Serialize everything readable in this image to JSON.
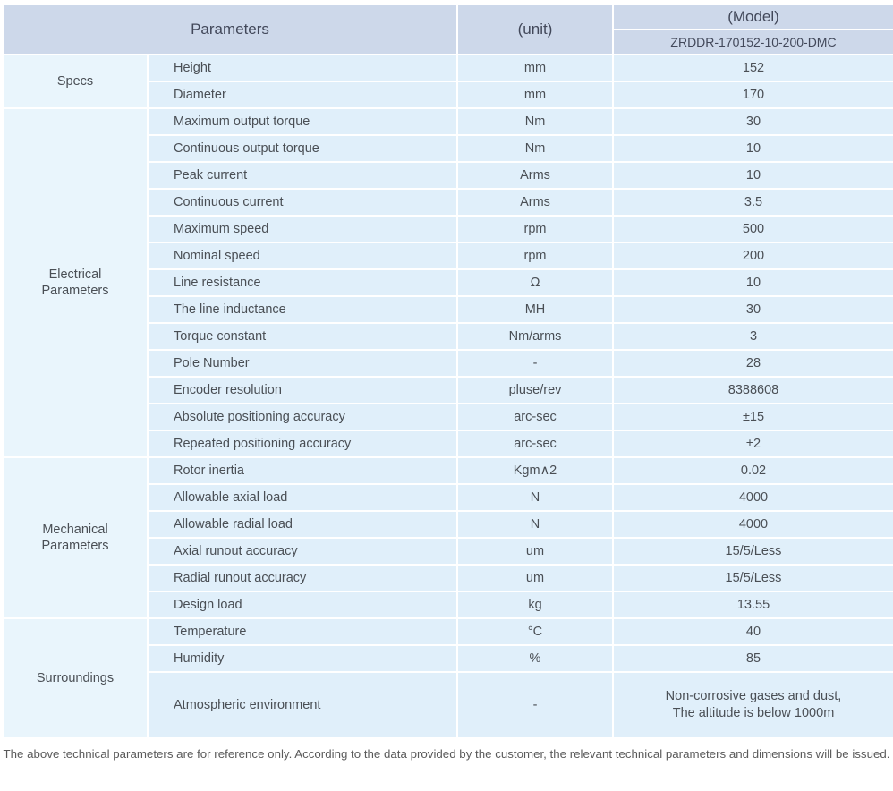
{
  "colors": {
    "header_bg": "#cdd8ea",
    "cell_bg": "#e0effa",
    "group_bg": "#e9f5fc",
    "text": "#4a4f55",
    "note_text": "#5a5a5a"
  },
  "table": {
    "header": {
      "parameters_label": "Parameters",
      "unit_label": "(unit)",
      "model_label": "(Model)",
      "model_value": "ZRDDR-170152-10-200-DMC"
    },
    "sections": [
      {
        "group": "Specs",
        "rows": [
          {
            "param": "Height",
            "unit": "mm",
            "value": "152"
          },
          {
            "param": "Diameter",
            "unit": "mm",
            "value": "170"
          }
        ]
      },
      {
        "group": "Electrical\nParameters",
        "rows": [
          {
            "param": "Maximum output torque",
            "unit": "Nm",
            "value": "30"
          },
          {
            "param": "Continuous output torque",
            "unit": "Nm",
            "value": "10"
          },
          {
            "param": "Peak current",
            "unit": "Arms",
            "value": "10"
          },
          {
            "param": "Continuous current",
            "unit": "Arms",
            "value": "3.5"
          },
          {
            "param": "Maximum speed",
            "unit": "rpm",
            "value": "500"
          },
          {
            "param": "Nominal speed",
            "unit": "rpm",
            "value": "200"
          },
          {
            "param": "Line resistance",
            "unit": "Ω",
            "value": "10"
          },
          {
            "param": "The line inductance",
            "unit": "MH",
            "value": "30"
          },
          {
            "param": "Torque constant",
            "unit": "Nm/arms",
            "value": "3"
          },
          {
            "param": "Pole Number",
            "unit": "-",
            "value": "28"
          },
          {
            "param": "Encoder resolution",
            "unit": "pluse/rev",
            "value": "8388608"
          },
          {
            "param": "Absolute positioning accuracy",
            "unit": "arc-sec",
            "value": "±15"
          },
          {
            "param": "Repeated positioning accuracy",
            "unit": "arc-sec",
            "value": "±2"
          }
        ]
      },
      {
        "group": "Mechanical\nParameters",
        "rows": [
          {
            "param": "Rotor inertia",
            "unit": "Kgm∧2",
            "value": "0.02"
          },
          {
            "param": "Allowable axial load",
            "unit": "N",
            "value": "4000"
          },
          {
            "param": "Allowable radial load",
            "unit": "N",
            "value": "4000"
          },
          {
            "param": "Axial runout accuracy",
            "unit": "um",
            "value": "15/5/Less"
          },
          {
            "param": "Radial runout accuracy",
            "unit": "um",
            "value": "15/5/Less"
          },
          {
            "param": "Design load",
            "unit": "kg",
            "value": "13.55"
          }
        ]
      },
      {
        "group": "Surroundings",
        "rows": [
          {
            "param": "Temperature",
            "unit": "°C",
            "value": "40"
          },
          {
            "param": "Humidity",
            "unit": "%",
            "value": "85"
          },
          {
            "param": "Atmospheric environment",
            "unit": "-",
            "value": "Non-corrosive gases and dust,\nThe altitude is below 1000m"
          }
        ]
      }
    ],
    "footer_note": "The above technical parameters are for reference only. According to the data provided by the customer, the relevant technical parameters and dimensions will be issued."
  }
}
